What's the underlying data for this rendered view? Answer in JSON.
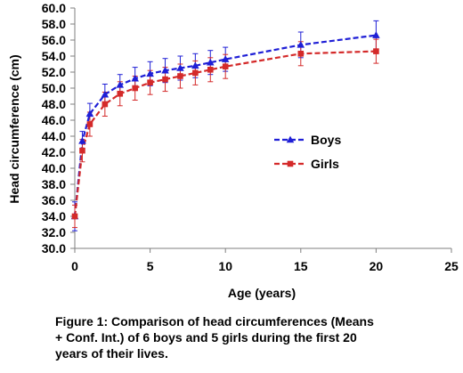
{
  "caption": {
    "line1": "Figure 1: Comparison of head circumferences (Means",
    "line2": "+ Conf. Int.) of 6 boys and 5 girls during the first 20",
    "line3": "years of their lives."
  },
  "colors": {
    "boys": "#1f1fd6",
    "girls": "#d42a2a",
    "axis": "#7f7f7f",
    "grid": "#c8c8c8"
  },
  "chart_data": {
    "type": "line",
    "xlabel": "Age (years)",
    "ylabel": "Head circumference (cm)",
    "xlim": [
      0,
      25
    ],
    "ylim": [
      30,
      60
    ],
    "x_ticks": [
      "0",
      "5",
      "10",
      "15",
      "20",
      "25"
    ],
    "y_ticks": [
      "30.0",
      "32.0",
      "34.0",
      "36.0",
      "38.0",
      "40.0",
      "42.0",
      "44.0",
      "46.0",
      "48.0",
      "50.0",
      "52.0",
      "54.0",
      "56.0",
      "58.0",
      "60.0"
    ],
    "grid": false,
    "legend_position": "center-right",
    "series": [
      {
        "name": "Boys",
        "color": "#1f1fd6",
        "marker": "triangle",
        "line_style": "dashed",
        "x": [
          0,
          0.5,
          1,
          2,
          3,
          4,
          5,
          6,
          7,
          8,
          9,
          10,
          15,
          20
        ],
        "y": [
          34.0,
          43.4,
          46.8,
          49.2,
          50.4,
          51.2,
          51.8,
          52.2,
          52.5,
          52.8,
          53.2,
          53.6,
          55.4,
          56.6
        ],
        "err": [
          1.8,
          1.2,
          1.3,
          1.3,
          1.3,
          1.4,
          1.5,
          1.5,
          1.5,
          1.5,
          1.5,
          1.5,
          1.6,
          1.8
        ]
      },
      {
        "name": "Girls",
        "color": "#d42a2a",
        "marker": "square",
        "line_style": "dashed",
        "x": [
          0,
          0.5,
          1,
          2,
          3,
          4,
          5,
          6,
          7,
          8,
          9,
          10,
          15,
          20
        ],
        "y": [
          34.0,
          42.2,
          45.5,
          48.0,
          49.3,
          50.0,
          50.7,
          51.1,
          51.5,
          51.9,
          52.3,
          52.7,
          54.3,
          54.6
        ],
        "err": [
          1.4,
          1.4,
          1.5,
          1.5,
          1.5,
          1.5,
          1.5,
          1.5,
          1.5,
          1.5,
          1.5,
          1.5,
          1.5,
          1.5
        ]
      }
    ]
  }
}
